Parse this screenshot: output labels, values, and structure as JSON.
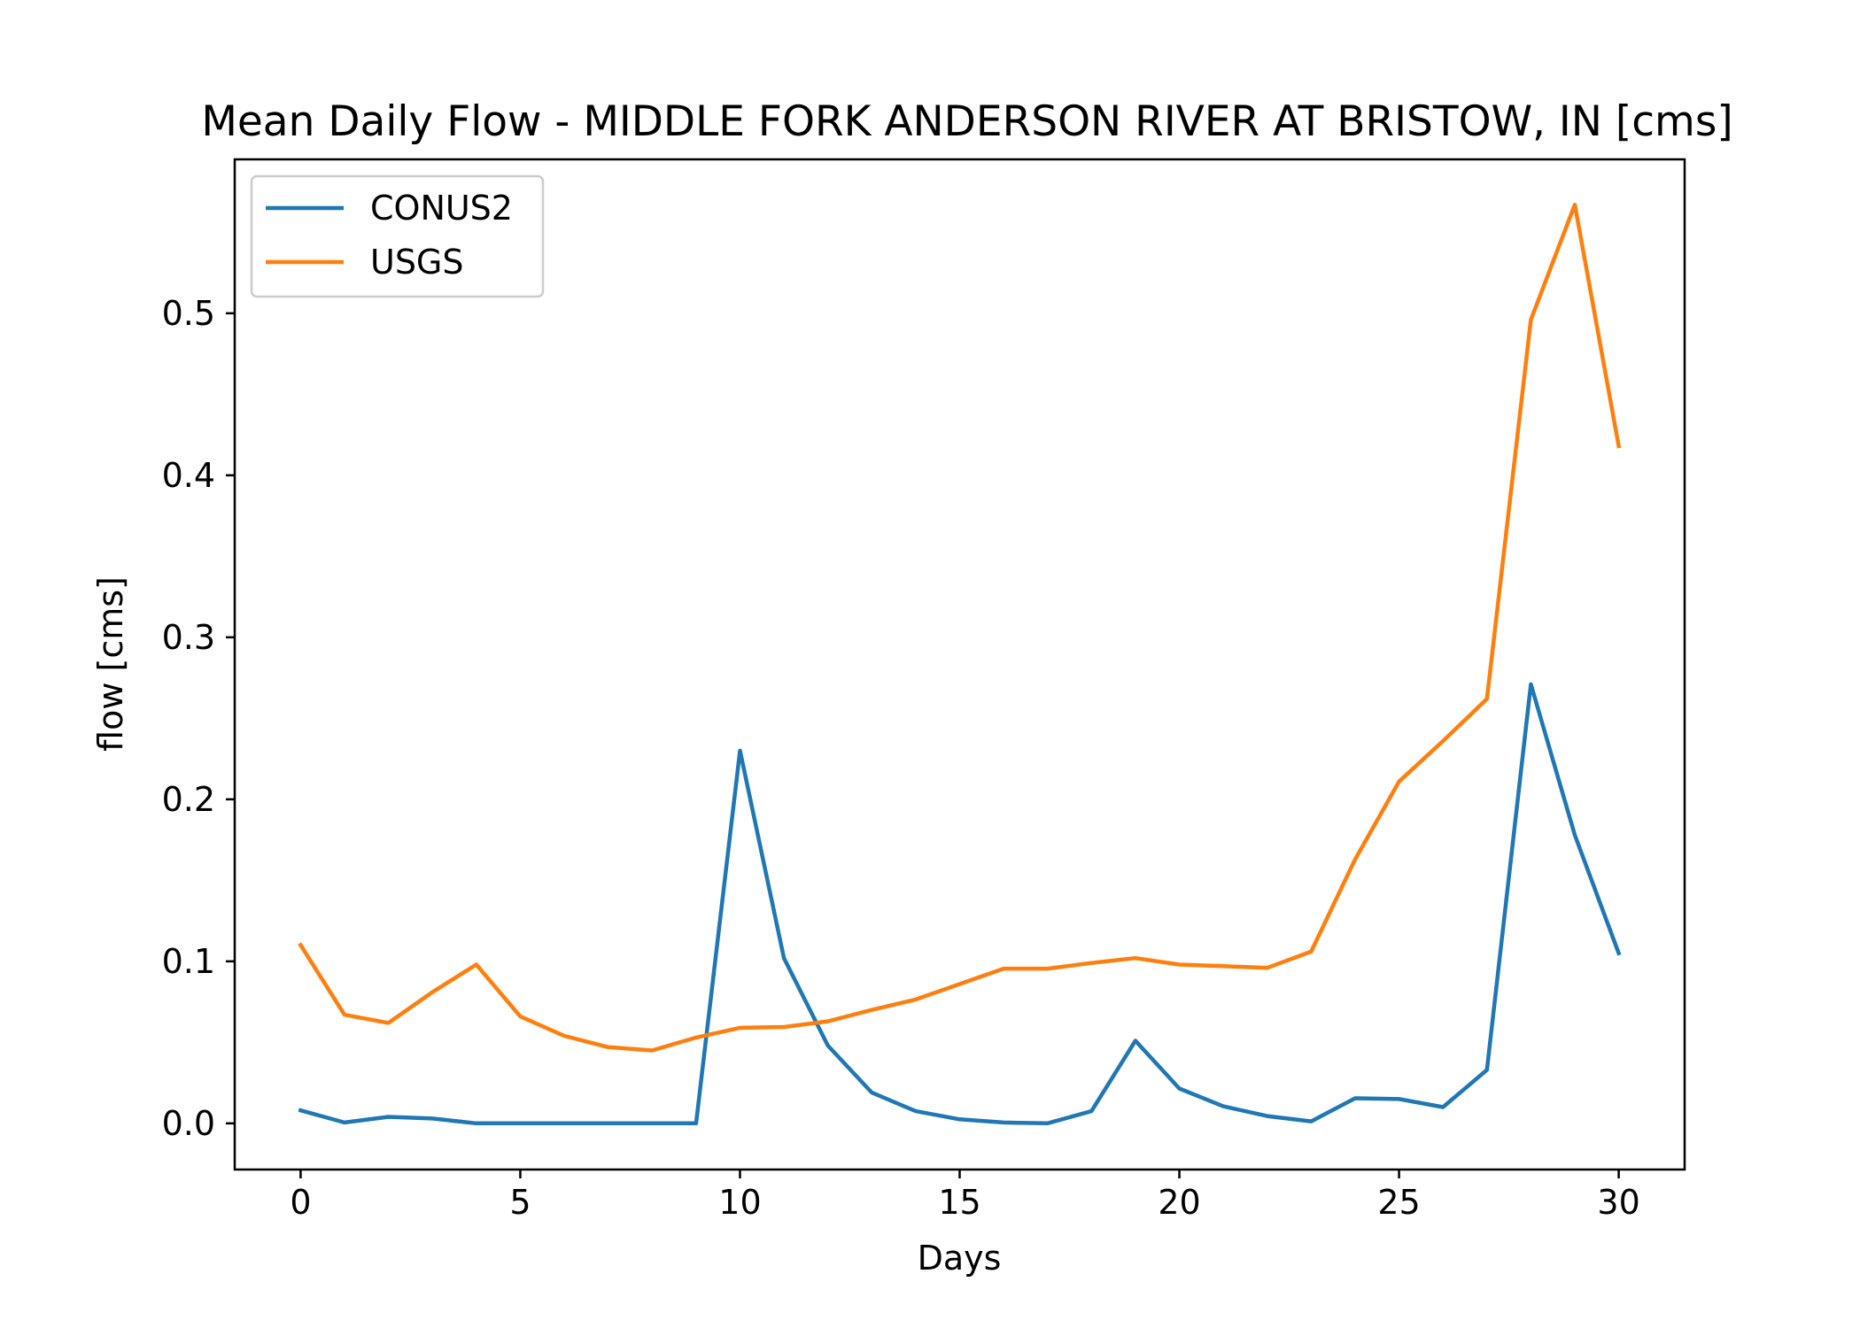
{
  "chart_data": {
    "type": "line",
    "title": "Mean Daily Flow - MIDDLE FORK ANDERSON RIVER AT BRISTOW, IN [cms]",
    "xlabel": "Days",
    "ylabel": "flow [cms]",
    "xlim": [
      -1.5,
      31.5
    ],
    "ylim": [
      -0.0285,
      0.595
    ],
    "xticks": [
      0,
      5,
      10,
      15,
      20,
      25,
      30
    ],
    "yticks": [
      0.0,
      0.1,
      0.2,
      0.3,
      0.4,
      0.5
    ],
    "xtick_labels": [
      "0",
      "5",
      "10",
      "15",
      "20",
      "25",
      "30"
    ],
    "ytick_labels": [
      "0.0",
      "0.1",
      "0.2",
      "0.3",
      "0.4",
      "0.5"
    ],
    "grid": false,
    "legend": "upper left",
    "x": [
      0,
      1,
      2,
      3,
      4,
      5,
      6,
      7,
      8,
      9,
      10,
      11,
      12,
      13,
      14,
      15,
      16,
      17,
      18,
      19,
      20,
      21,
      22,
      23,
      24,
      25,
      26,
      27,
      28,
      29,
      30
    ],
    "series": [
      {
        "name": "CONUS2",
        "color": "#1f77b4",
        "values": [
          0.008,
          0.0005,
          0.004,
          0.003,
          0.0,
          0.0,
          0.0,
          0.0,
          0.0,
          0.0,
          0.23,
          0.102,
          0.048,
          0.019,
          0.0075,
          0.0025,
          0.0005,
          0.0,
          0.0075,
          0.051,
          0.0215,
          0.0105,
          0.0045,
          0.0012,
          0.0155,
          0.015,
          0.01,
          0.033,
          0.271,
          0.178,
          0.105
        ]
      },
      {
        "name": "USGS",
        "color": "#ff7f0e",
        "values": [
          0.11,
          0.067,
          0.062,
          0.081,
          0.098,
          0.066,
          0.054,
          0.047,
          0.045,
          0.053,
          0.059,
          0.0595,
          0.063,
          0.07,
          0.0765,
          0.086,
          0.0955,
          0.0955,
          0.099,
          0.102,
          0.098,
          0.097,
          0.096,
          0.106,
          0.163,
          0.211,
          0.236,
          0.262,
          0.496,
          0.567,
          0.418
        ]
      }
    ]
  }
}
